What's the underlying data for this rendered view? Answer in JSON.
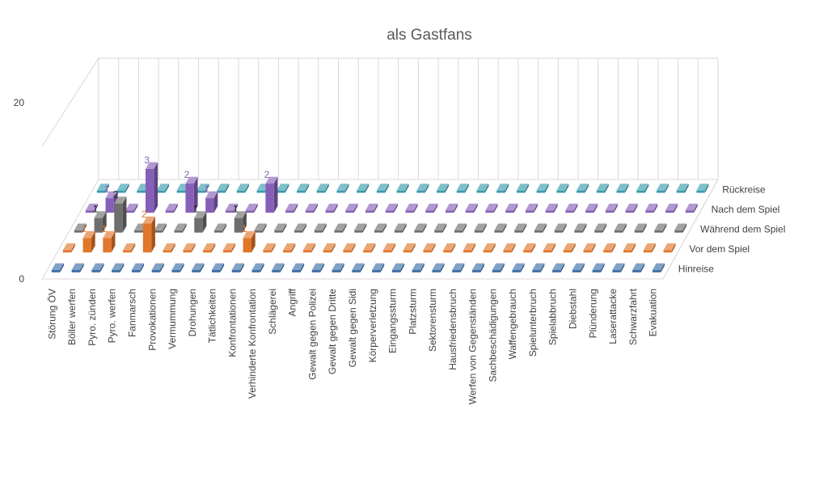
{
  "chart_data": {
    "type": "bar3d",
    "title": "als Gastfans",
    "categories": [
      "Störung ÖV",
      "Böller werfen",
      "Pyro. zünden",
      "Pyro. werfen",
      "Fanmarsch",
      "Provokationen",
      "Vermummung",
      "Drohungen",
      "Tätlichkeiten",
      "Konfrontationen",
      "Verhinderte Konfrontation",
      "Schlägerei",
      "Angriff",
      "Gewalt gegen Polizei",
      "Gewalt gegen Dritte",
      "Gewalt gegen Sidi",
      "Körperverletzung",
      "Eingangssturm",
      "Platzsturm",
      "Sektorensturm",
      "Hausfriedensbruch",
      "Werfen von Gegenständen",
      "Sachbeschädigungen",
      "Waffengebrauch",
      "Spielunterbruch",
      "Spielabbruch",
      "Diebstahl",
      "Plünderung",
      "Laserattacke",
      "Schwarzfahrt",
      "Evakuation"
    ],
    "series": [
      {
        "name": "Hinreise",
        "color": "#3F6FA8",
        "values": [
          0,
          0,
          0,
          0,
          0,
          0,
          0,
          0,
          0,
          0,
          0,
          0,
          0,
          0,
          0,
          0,
          0,
          0,
          0,
          0,
          0,
          0,
          0,
          0,
          0,
          0,
          0,
          0,
          0,
          0,
          0
        ]
      },
      {
        "name": "Vor dem Spiel",
        "color": "#E2762B",
        "values": [
          0,
          1,
          1,
          0,
          2,
          0,
          0,
          0,
          0,
          1,
          0,
          0,
          0,
          0,
          0,
          0,
          0,
          0,
          0,
          0,
          0,
          0,
          0,
          0,
          0,
          0,
          0,
          0,
          0,
          0,
          0
        ]
      },
      {
        "name": "Während dem Spiel",
        "color": "#6E6E6E",
        "values": [
          0,
          1,
          2,
          0,
          0,
          0,
          1,
          0,
          1,
          0,
          0,
          0,
          0,
          0,
          0,
          0,
          0,
          0,
          0,
          0,
          0,
          0,
          0,
          0,
          0,
          0,
          0,
          0,
          0,
          0,
          0
        ]
      },
      {
        "name": "Nach dem Spiel",
        "color": "#8660B8",
        "values": [
          0,
          1,
          0,
          3,
          0,
          2,
          1,
          0,
          0,
          2,
          0,
          0,
          0,
          0,
          0,
          0,
          0,
          0,
          0,
          0,
          0,
          0,
          0,
          0,
          0,
          0,
          0,
          0,
          0,
          0,
          0
        ]
      },
      {
        "name": "Rückreise",
        "color": "#3A9CAE",
        "values": [
          0,
          0,
          0,
          0,
          0,
          0,
          0,
          0,
          0,
          0,
          0,
          0,
          0,
          0,
          0,
          0,
          0,
          0,
          0,
          0,
          0,
          0,
          0,
          0,
          0,
          0,
          0,
          0,
          0,
          0,
          0
        ]
      }
    ],
    "y_axis_labels": [
      "20",
      "0"
    ],
    "ylim": [
      0,
      20
    ],
    "xlabel": "",
    "ylabel": "",
    "legend": "series labels on the depth axis"
  }
}
